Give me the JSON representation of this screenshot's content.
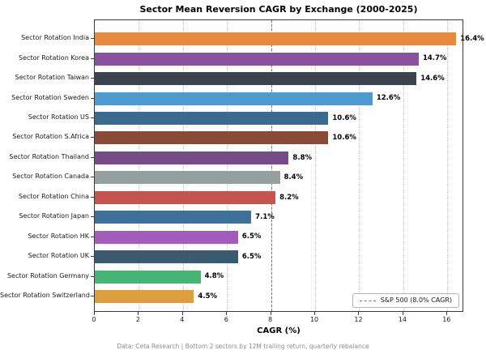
{
  "title": "Sector Mean Reversion CAGR by Exchange (2000-2025)",
  "xlabel": "CAGR (%)",
  "footer": "Data: Ceta Research | Bottom 2 sectors by 12M trailing return, quarterly rebalance",
  "legend": {
    "label": "S&P 500 (8.0% CAGR)",
    "line_color": "#e8483a"
  },
  "reference_line": {
    "value": 8.0,
    "color": "#e8483a",
    "style": "dashed"
  },
  "chart_data": {
    "type": "bar",
    "orientation": "horizontal",
    "title": "Sector Mean Reversion CAGR by Exchange (2000-2025)",
    "xlabel": "CAGR (%)",
    "ylabel": "",
    "categories": [
      "Sector Rotation India",
      "Sector Rotation Korea",
      "Sector Rotation Taiwan",
      "Sector Rotation Sweden",
      "Sector Rotation US",
      "Sector Rotation S.Africa",
      "Sector Rotation Thailand",
      "Sector Rotation Canada",
      "Sector Rotation China",
      "Sector Rotation Japan",
      "Sector Rotation HK",
      "Sector Rotation UK",
      "Sector Rotation Germany",
      "Sector Rotation Switzerland"
    ],
    "values": [
      16.4,
      14.7,
      14.6,
      12.6,
      10.6,
      10.6,
      8.8,
      8.4,
      8.2,
      7.1,
      6.5,
      6.5,
      4.8,
      4.5
    ],
    "value_labels": [
      "16.4%",
      "14.7%",
      "14.6%",
      "12.6%",
      "10.6%",
      "10.6%",
      "8.8%",
      "8.4%",
      "8.2%",
      "7.1%",
      "6.5%",
      "6.5%",
      "4.8%",
      "4.5%"
    ],
    "bar_colors": [
      "#e68a3c",
      "#8a529e",
      "#3b434e",
      "#4d9ad0",
      "#3a6b8e",
      "#8a4a38",
      "#764b88",
      "#95a09e",
      "#c4544c",
      "#3e7199",
      "#a35cbc",
      "#3a5a72",
      "#46b474",
      "#dd9f3d"
    ],
    "xticks": [
      0,
      2,
      4,
      6,
      8,
      10,
      12,
      14,
      16
    ],
    "xlim": [
      0,
      16.76
    ],
    "grid": "vertical-dotted",
    "legend_position": "lower right"
  }
}
